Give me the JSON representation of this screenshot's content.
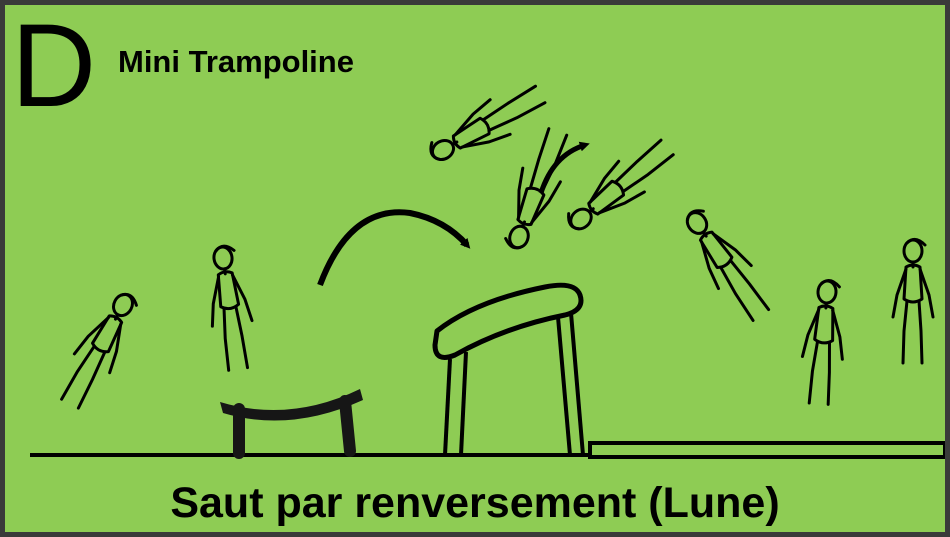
{
  "card": {
    "letter": "D",
    "subtitle": "Mini Trampoline",
    "caption": "Saut par renversement (Lune)"
  },
  "colors": {
    "background": "#8ecc54",
    "border": "#3a3a3a",
    "ink": "#000000"
  },
  "icons": [
    "gymnast-figure",
    "mini-trampoline",
    "vaulting-horse",
    "landing-mat",
    "rotation-arrow"
  ]
}
